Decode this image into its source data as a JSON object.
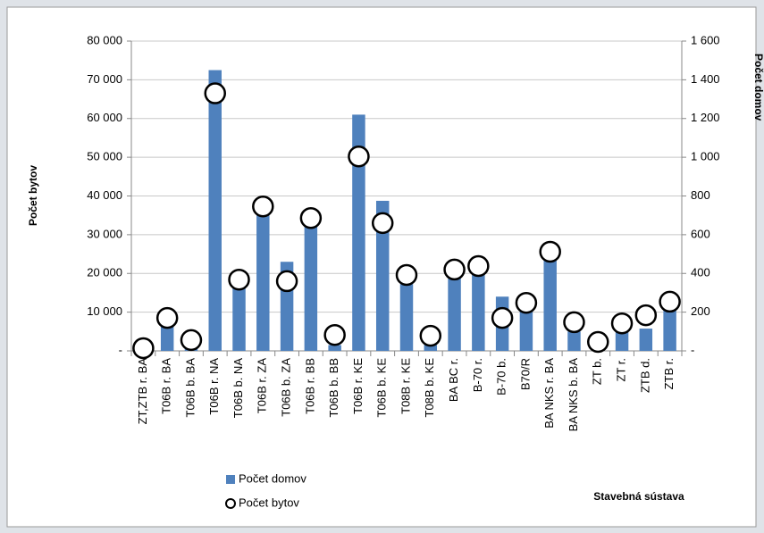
{
  "chart_data": {
    "type": "bar",
    "x_label": "Stavebná sústava",
    "y_label": "Počet bytov",
    "y2_label": "Počet domov",
    "categories": [
      "ZT,ZTB r. BA",
      "T06B r. BA",
      "T06B b. BA",
      "T06B r. NA",
      "T06B b. NA",
      "T06B r. ZA",
      "T06B b. ZA",
      "T06B r. BB",
      "T06B b. BB",
      "T06B r. KE",
      "T06B b. KE",
      "T08B r. KE",
      "T08B b. KE",
      "BA BC r.",
      "B-70 r.",
      "B-70 b.",
      "B70/R",
      "BA NKS r. BA",
      "BA NKS b. BA",
      "ZT b.",
      "ZT r.",
      "ZTB d.",
      "ZTB r."
    ],
    "series": [
      {
        "name": "Počet domov",
        "type": "bar",
        "axis": "y2",
        "color": "#4f81bd",
        "values": [
          0,
          140,
          20,
          1450,
          340,
          700,
          460,
          660,
          30,
          1220,
          775,
          345,
          30,
          380,
          400,
          280,
          210,
          490,
          100,
          20,
          100,
          115,
          210
        ]
      },
      {
        "name": "Počet bytov",
        "type": "scatter",
        "axis": "y",
        "color": "#000000",
        "values": [
          700,
          8500,
          2800,
          66500,
          18400,
          37300,
          18000,
          34300,
          4100,
          50200,
          33000,
          19600,
          3900,
          21000,
          21900,
          8500,
          12400,
          25600,
          7400,
          2300,
          7100,
          9200,
          12700
        ]
      }
    ],
    "ylim": [
      0,
      80000
    ],
    "yticks": [
      {
        "value": 0,
        "label": "-"
      },
      {
        "value": 10000,
        "label": "10 000"
      },
      {
        "value": 20000,
        "label": "20 000"
      },
      {
        "value": 30000,
        "label": "30 000"
      },
      {
        "value": 40000,
        "label": "40 000"
      },
      {
        "value": 50000,
        "label": "50 000"
      },
      {
        "value": 60000,
        "label": "60 000"
      },
      {
        "value": 70000,
        "label": "70 000"
      },
      {
        "value": 80000,
        "label": "80 000"
      }
    ],
    "y2lim": [
      0,
      1600
    ],
    "y2ticks": [
      {
        "value": 0,
        "label": "-"
      },
      200,
      400,
      600,
      800,
      {
        "value": 1000,
        "label": "1 000"
      },
      {
        "value": 1200,
        "label": "1 200"
      },
      {
        "value": 1400,
        "label": "1 400"
      },
      {
        "value": 1600,
        "label": "1 600"
      }
    ],
    "grid": true,
    "legend": "bottom-left"
  }
}
